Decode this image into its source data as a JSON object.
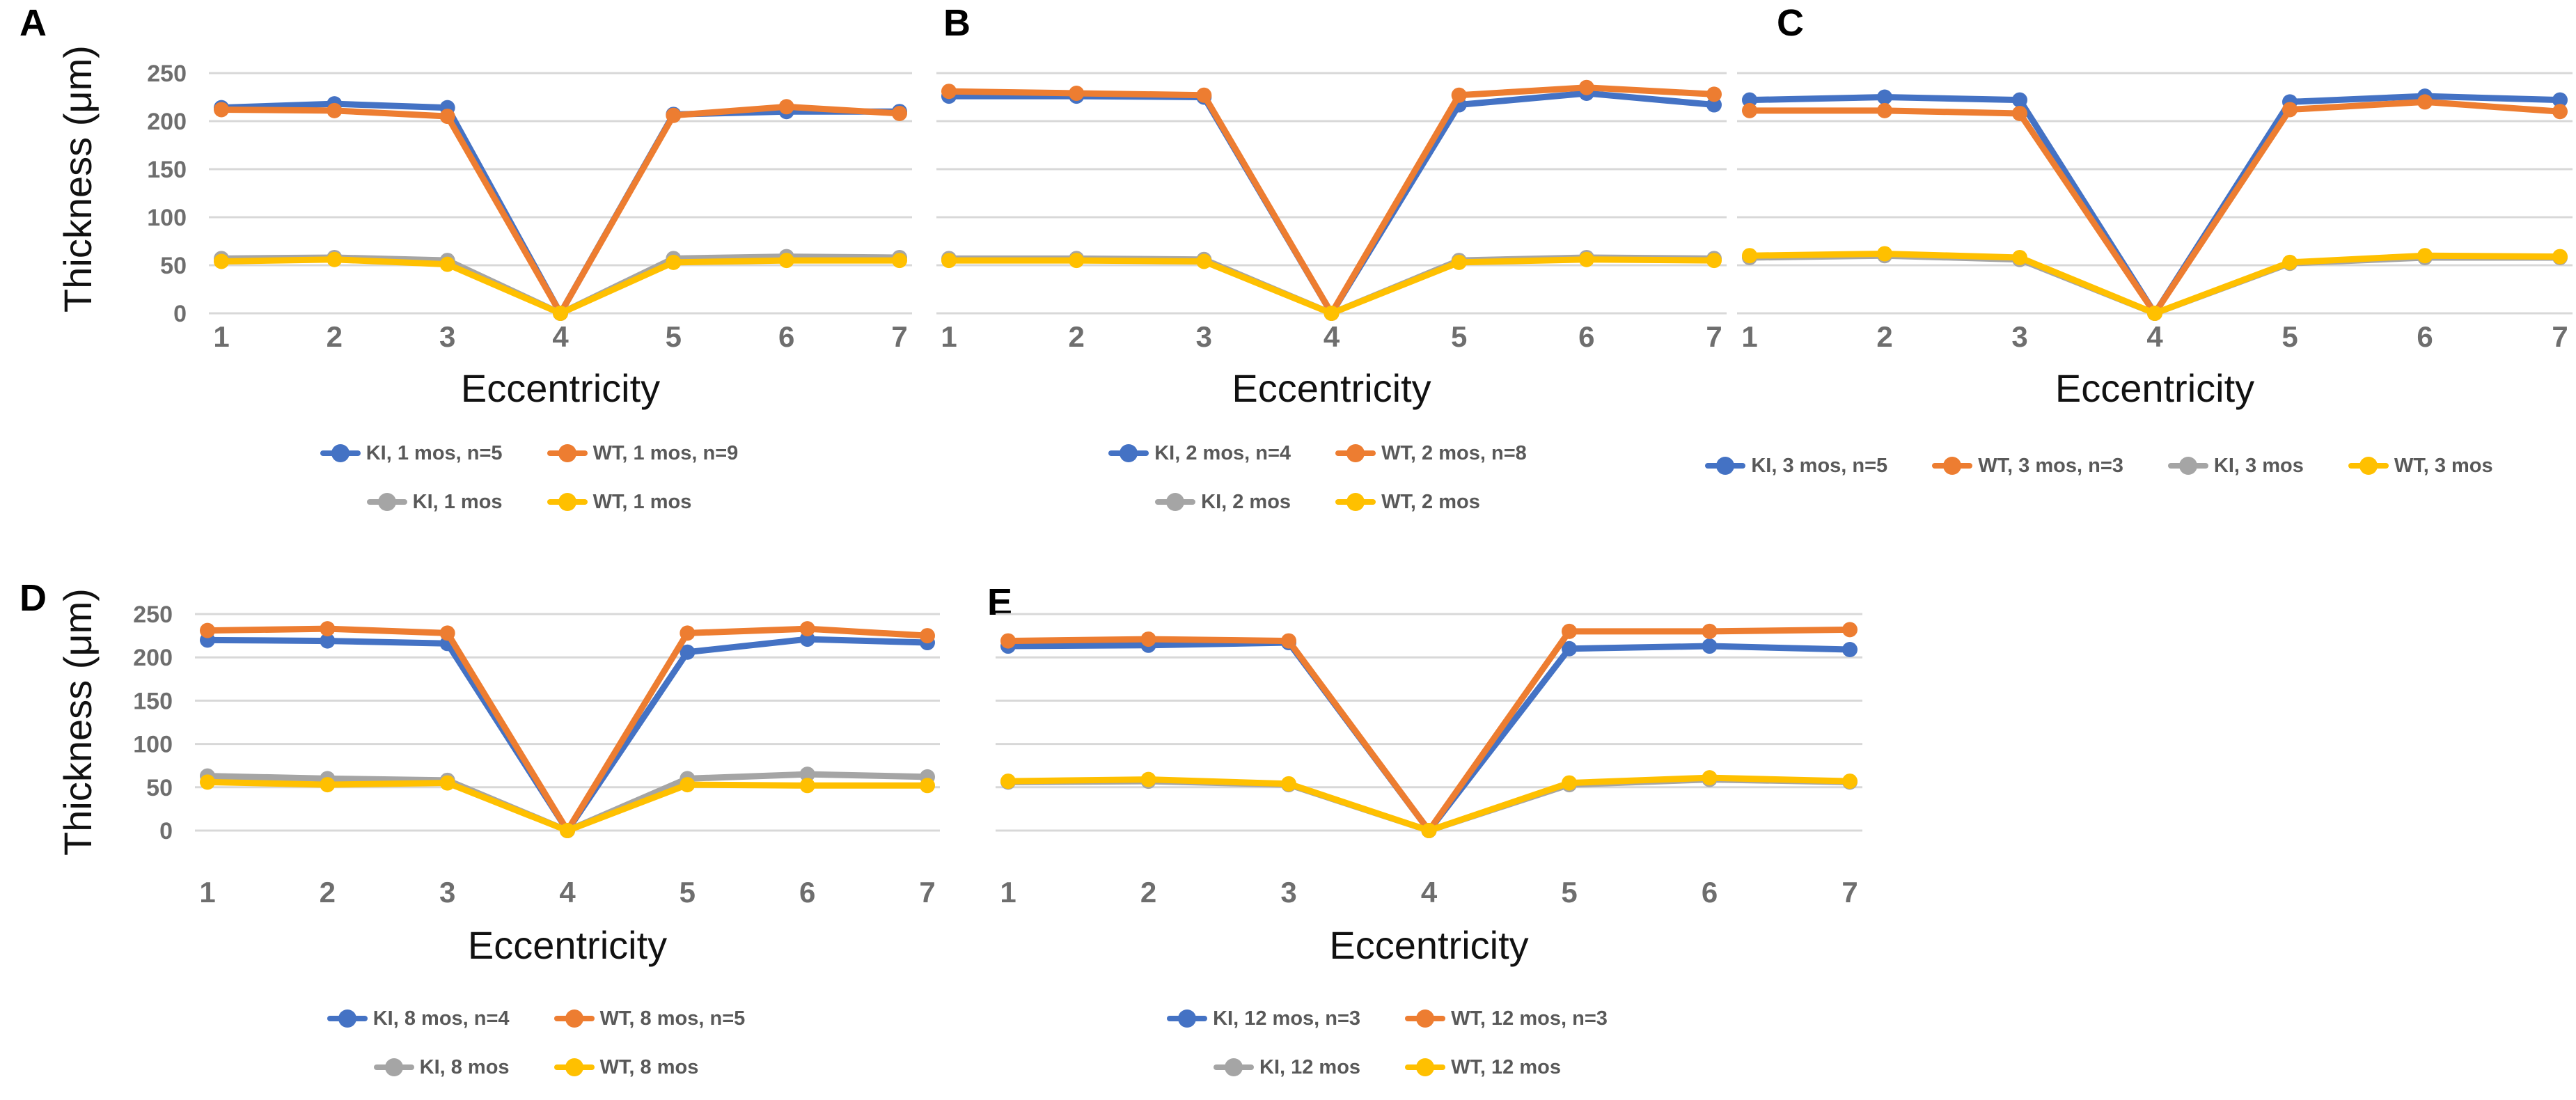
{
  "figure": {
    "ylabel": "Thickness (μm)",
    "xlabel": "Eccentricity"
  },
  "style_colors": {
    "series_blue": "#4472C4",
    "series_orange": "#ED7D31",
    "series_gray": "#A5A5A5",
    "series_yellow": "#FFC000",
    "gridline": "#D8D8D8",
    "tick_text": "#6E6E6E",
    "legend_text": "#595959",
    "axis_title_text": "#111111"
  },
  "chart_data": [
    {
      "panel_label": "A",
      "type": "line",
      "xlabel": "Eccentricity",
      "ylabel": "Thickness (μm)",
      "x": [
        1,
        2,
        3,
        4,
        5,
        6,
        7
      ],
      "x_tick_labels": [
        "1",
        "2",
        "3",
        "4",
        "5",
        "6",
        "7"
      ],
      "y_ticks": [
        0,
        50,
        100,
        150,
        200,
        250
      ],
      "ylim": [
        0,
        250
      ],
      "grid": true,
      "y_axis_visible": true,
      "legend_position": "bottom",
      "legend_columns": 2,
      "series": [
        {
          "name": "KI, 1 mos, n=5",
          "color": "#4472C4",
          "values": [
            214,
            218,
            214,
            0,
            207,
            210,
            210
          ]
        },
        {
          "name": "WT, 1 mos, n=9",
          "color": "#ED7D31",
          "values": [
            212,
            211,
            205,
            0,
            206,
            215,
            208
          ]
        },
        {
          "name": "KI, 1 mos",
          "color": "#A5A5A5",
          "values": [
            57,
            58,
            55,
            0,
            57,
            59,
            58
          ]
        },
        {
          "name": "WT, 1 mos",
          "color": "#FFC000",
          "values": [
            54,
            56,
            51,
            0,
            53,
            55,
            55
          ]
        }
      ]
    },
    {
      "panel_label": "B",
      "type": "line",
      "xlabel": "Eccentricity",
      "x": [
        1,
        2,
        3,
        4,
        5,
        6,
        7
      ],
      "x_tick_labels": [
        "1",
        "2",
        "3",
        "4",
        "5",
        "6",
        "7"
      ],
      "y_ticks": [
        0,
        50,
        100,
        150,
        200,
        250
      ],
      "ylim": [
        0,
        250
      ],
      "grid": true,
      "y_axis_visible": false,
      "legend_position": "bottom",
      "legend_columns": 2,
      "series": [
        {
          "name": "KI, 2 mos, n=4",
          "color": "#4472C4",
          "values": [
            226,
            226,
            225,
            0,
            217,
            229,
            217
          ]
        },
        {
          "name": "WT, 2 mos, n=8",
          "color": "#ED7D31",
          "values": [
            231,
            229,
            227,
            0,
            227,
            235,
            228
          ]
        },
        {
          "name": "KI, 2 mos",
          "color": "#A5A5A5",
          "values": [
            57,
            57,
            56,
            0,
            55,
            58,
            57
          ]
        },
        {
          "name": "WT, 2 mos",
          "color": "#FFC000",
          "values": [
            55,
            55,
            54,
            0,
            53,
            56,
            55
          ]
        }
      ]
    },
    {
      "panel_label": "C",
      "type": "line",
      "xlabel": "Eccentricity",
      "x": [
        1,
        2,
        3,
        4,
        5,
        6,
        7
      ],
      "x_tick_labels": [
        "1",
        "2",
        "3",
        "4",
        "5",
        "6",
        "7"
      ],
      "y_ticks": [
        0,
        50,
        100,
        150,
        200,
        250
      ],
      "ylim": [
        0,
        250
      ],
      "grid": true,
      "y_axis_visible": false,
      "legend_position": "bottom",
      "legend_columns": 4,
      "series": [
        {
          "name": "KI, 3 mos, n=5",
          "color": "#4472C4",
          "values": [
            222,
            225,
            222,
            0,
            220,
            226,
            222
          ]
        },
        {
          "name": "WT, 3 mos, n=3",
          "color": "#ED7D31",
          "values": [
            211,
            211,
            208,
            0,
            212,
            220,
            210
          ]
        },
        {
          "name": "KI, 3 mos",
          "color": "#A5A5A5",
          "values": [
            58,
            60,
            56,
            0,
            52,
            58,
            58
          ]
        },
        {
          "name": "WT, 3 mos",
          "color": "#FFC000",
          "values": [
            60,
            62,
            58,
            0,
            53,
            60,
            59
          ]
        }
      ]
    },
    {
      "panel_label": "D",
      "type": "line",
      "xlabel": "Eccentricity",
      "ylabel": "Thickness (μm)",
      "x": [
        1,
        2,
        3,
        4,
        5,
        6,
        7
      ],
      "x_tick_labels": [
        "1",
        "2",
        "3",
        "4",
        "5",
        "6",
        "7"
      ],
      "y_ticks": [
        0,
        50,
        100,
        150,
        200,
        250
      ],
      "ylim": [
        0,
        250
      ],
      "grid": true,
      "y_axis_visible": true,
      "legend_position": "bottom",
      "legend_columns": 2,
      "series": [
        {
          "name": "KI, 8 mos, n=4",
          "color": "#4472C4",
          "values": [
            220,
            219,
            216,
            0,
            206,
            221,
            217
          ]
        },
        {
          "name": "WT, 8 mos, n=5",
          "color": "#ED7D31",
          "values": [
            231,
            233,
            228,
            0,
            228,
            233,
            225
          ]
        },
        {
          "name": "KI, 8 mos",
          "color": "#A5A5A5",
          "values": [
            63,
            60,
            58,
            0,
            60,
            65,
            62
          ]
        },
        {
          "name": "WT, 8 mos",
          "color": "#FFC000",
          "values": [
            56,
            53,
            55,
            0,
            53,
            52,
            52
          ]
        }
      ]
    },
    {
      "panel_label": "E",
      "type": "line",
      "xlabel": "Eccentricity",
      "x": [
        1,
        2,
        3,
        4,
        5,
        6,
        7
      ],
      "x_tick_labels": [
        "1",
        "2",
        "3",
        "4",
        "5",
        "6",
        "7"
      ],
      "y_ticks": [
        0,
        50,
        100,
        150,
        200,
        250
      ],
      "ylim": [
        0,
        250
      ],
      "grid": true,
      "y_axis_visible": false,
      "legend_position": "bottom",
      "legend_columns": 2,
      "series": [
        {
          "name": "KI, 12 mos, n=3",
          "color": "#4472C4",
          "values": [
            213,
            214,
            217,
            0,
            210,
            213,
            209
          ]
        },
        {
          "name": "WT, 12 mos, n=3",
          "color": "#ED7D31",
          "values": [
            219,
            221,
            219,
            0,
            230,
            230,
            232
          ]
        },
        {
          "name": "KI, 12 mos",
          "color": "#A5A5A5",
          "values": [
            56,
            57,
            53,
            0,
            53,
            59,
            56
          ]
        },
        {
          "name": "WT, 12 mos",
          "color": "#FFC000",
          "values": [
            57,
            59,
            54,
            0,
            55,
            61,
            57
          ]
        }
      ]
    }
  ]
}
